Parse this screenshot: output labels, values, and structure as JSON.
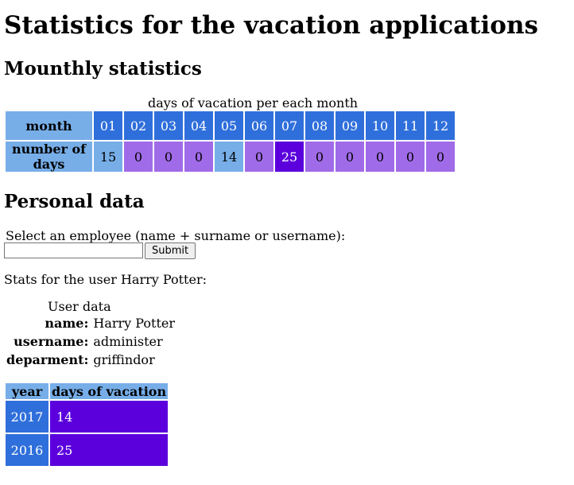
{
  "page_title": "Statistics for the vacation applications",
  "monthly": {
    "heading": "Mounthly statistics",
    "caption": "days of vacation per each month",
    "row_header_month": "month",
    "row_header_days": "number of days",
    "months": [
      "01",
      "02",
      "03",
      "04",
      "05",
      "06",
      "07",
      "08",
      "09",
      "10",
      "11",
      "12"
    ],
    "days": [
      "15",
      "0",
      "0",
      "0",
      "14",
      "0",
      "25",
      "0",
      "0",
      "0",
      "0",
      "0"
    ],
    "colors": {
      "header": "#2f6fdb",
      "label": "#77aee8",
      "nonzero_low": "#77aee8",
      "zero": "#a06be8",
      "max": "#5b00dd"
    }
  },
  "personal": {
    "heading": "Personal data",
    "select_label": "Select an employee (name + surname or username):",
    "input_value": "",
    "submit_label": "Submit",
    "stats_text": "Stats for the user Harry Potter:"
  },
  "user_data": {
    "caption": "User data",
    "rows": [
      {
        "key": "name:",
        "value": "Harry Potter"
      },
      {
        "key": "username:",
        "value": "administer"
      },
      {
        "key": "deparment:",
        "value": "griffindor"
      }
    ]
  },
  "yearly": {
    "col_year": "year",
    "col_days": "days of vacation",
    "rows": [
      {
        "year": "2017",
        "days": "14"
      },
      {
        "year": "2016",
        "days": "25"
      }
    ]
  }
}
